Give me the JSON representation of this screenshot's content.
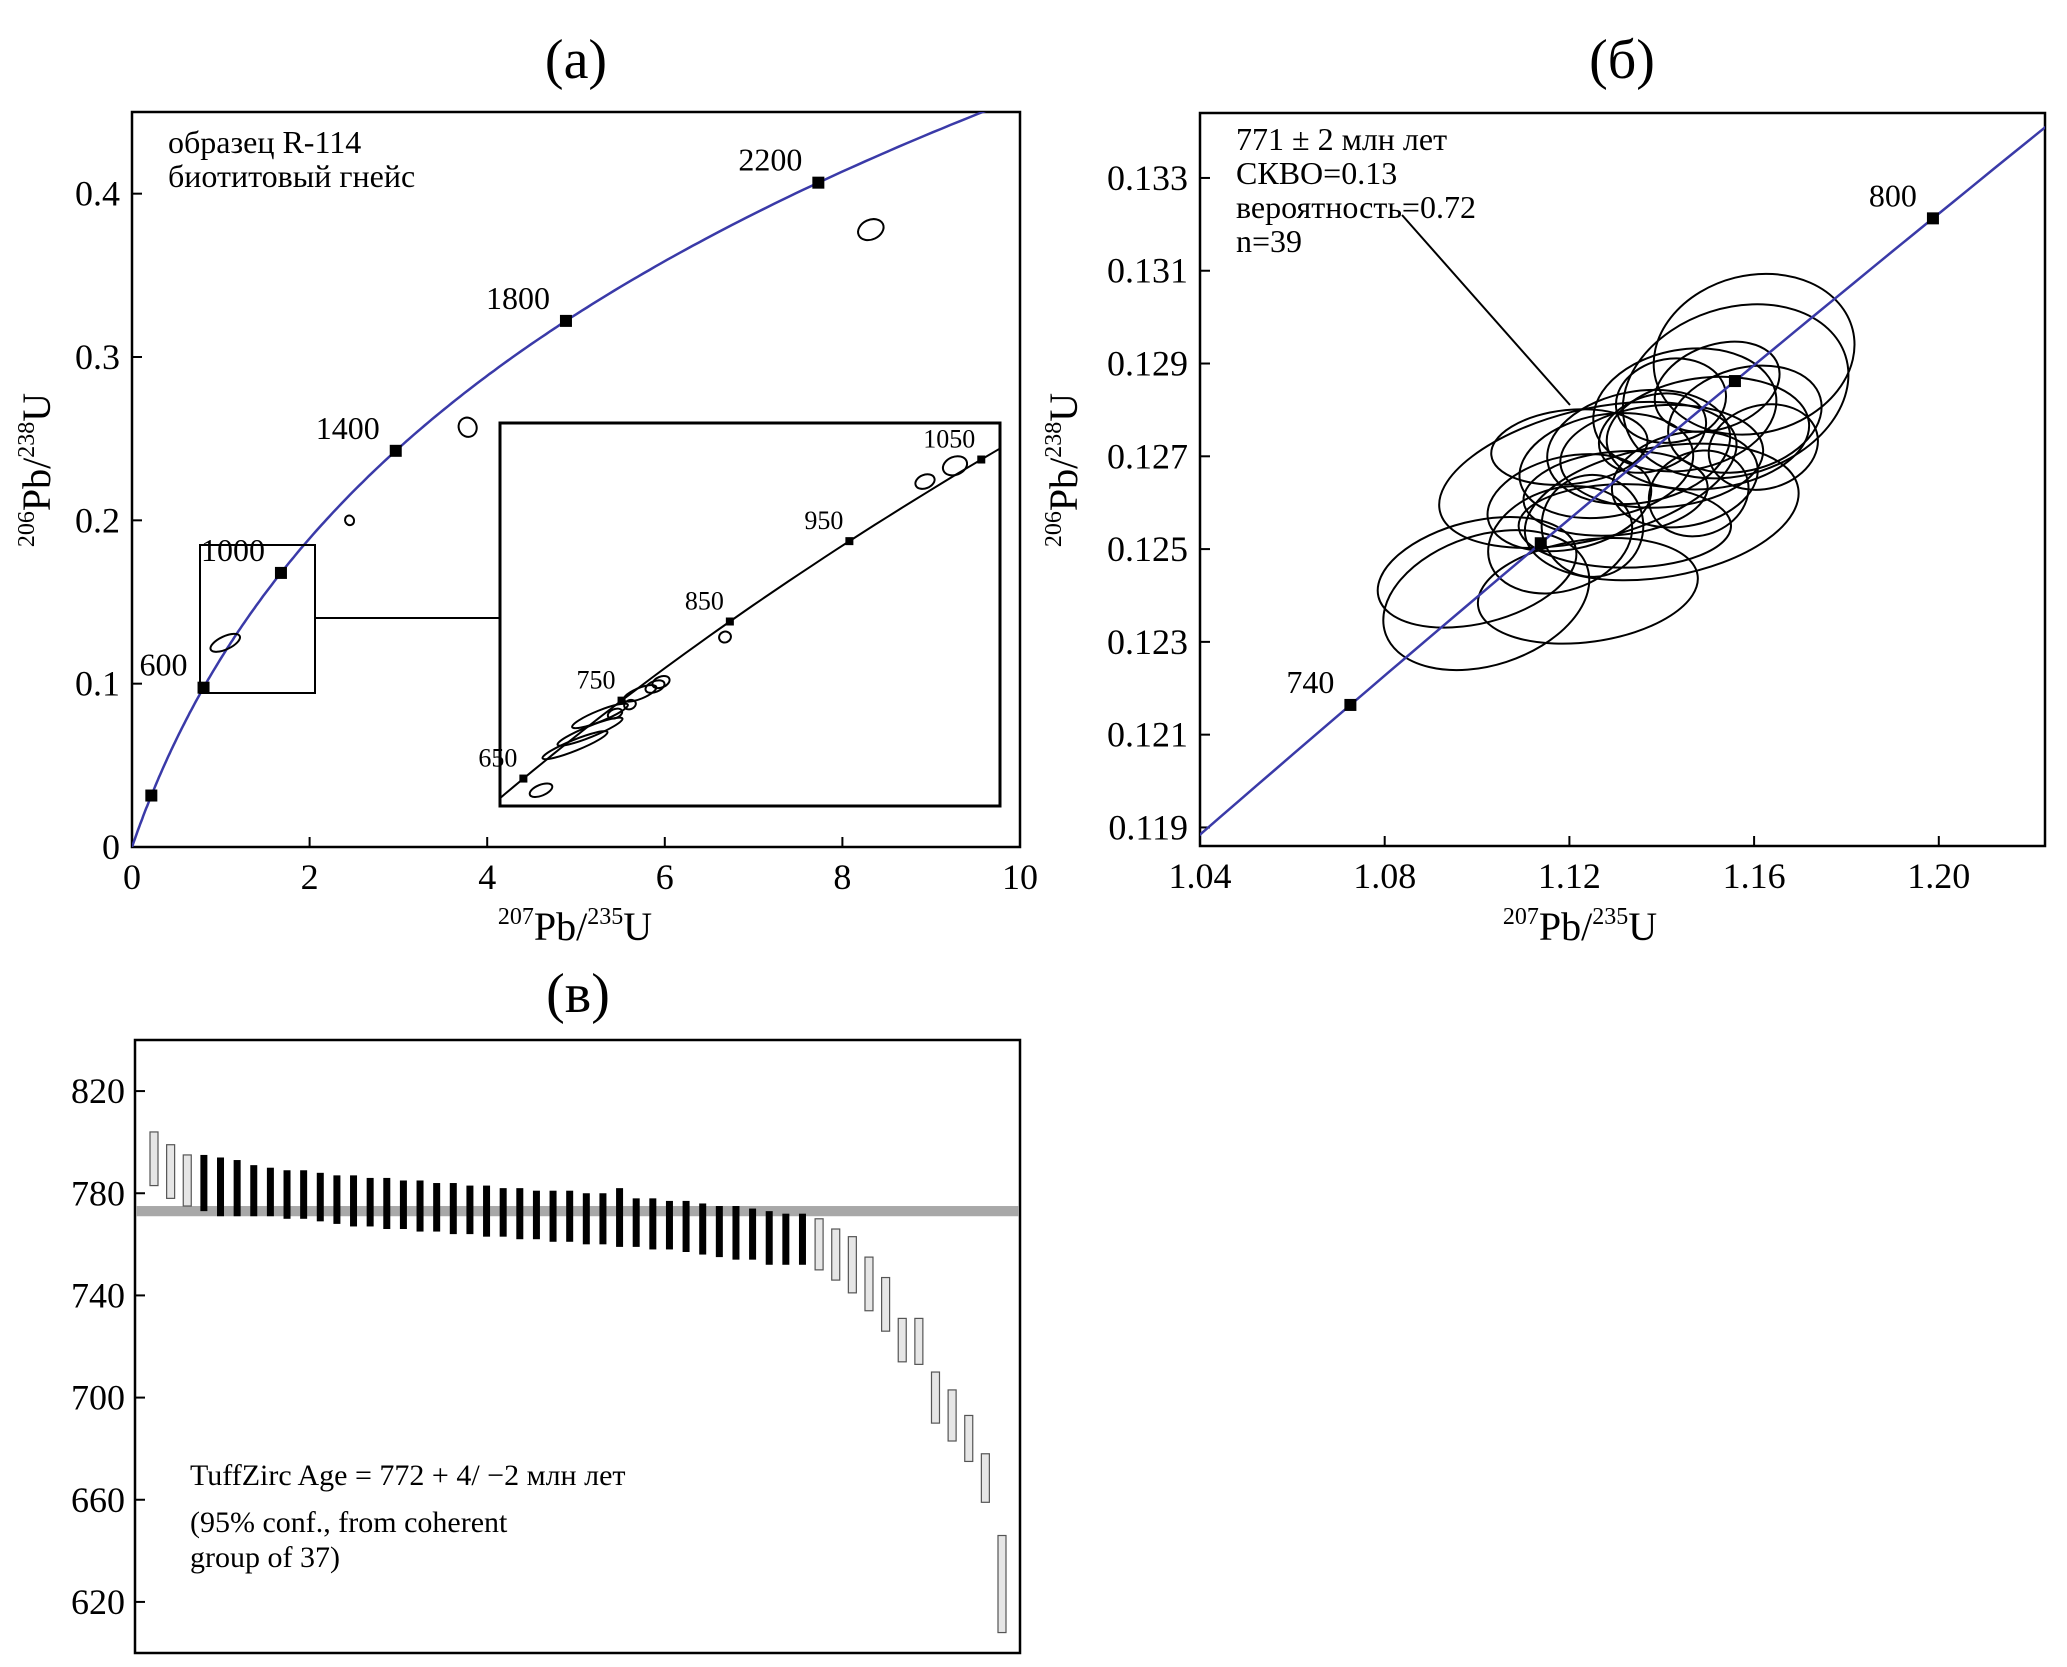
{
  "colors": {
    "concordia": "#3a3aa8",
    "axis": "#000000",
    "bar_black": "#000000",
    "bar_light": "#e6e6e6",
    "mean_band": "#a8a8a8"
  },
  "panel_labels": {
    "a": "(а)",
    "b": "(б)",
    "c": "(в)"
  },
  "chart_data": [
    {
      "id": "a",
      "type": "scatter",
      "title": "(а)",
      "annotation": [
        "образец R-114",
        "биотитовый гнейс"
      ],
      "xlabel": {
        "sup1": "207",
        "t1": "Pb/",
        "sup2": "235",
        "t2": "U"
      },
      "ylabel": {
        "sup1": "206",
        "t1": "Pb/",
        "sup2": "238",
        "t2": "U"
      },
      "xlim": [
        0,
        10
      ],
      "ylim": [
        0,
        0.45
      ],
      "xticks": [
        0,
        2,
        4,
        6,
        8,
        10
      ],
      "yticks": [
        0,
        0.1,
        0.2,
        0.3,
        0.4
      ],
      "concordia_ages": [
        200,
        600,
        1000,
        1400,
        1800,
        2200
      ],
      "concordia_labels": [
        "600",
        "1000",
        "1400",
        "1800",
        "2200"
      ],
      "ellipses": [
        {
          "x": 8.32,
          "y": 0.378,
          "rx": 0.15,
          "ry": 0.006
        },
        {
          "x": 3.78,
          "y": 0.257,
          "rx": 0.1,
          "ry": 0.006
        },
        {
          "x": 2.45,
          "y": 0.2,
          "rx": 0.05,
          "ry": 0.003
        },
        {
          "x": 1.05,
          "y": 0.125,
          "rx": 0.18,
          "ry": 0.004
        }
      ],
      "inset": {
        "xlim": [
          0.85,
          1.85
        ],
        "ylim": [
          0.1,
          0.185
        ],
        "concordia_labels": [
          "650",
          "750",
          "850",
          "950",
          "1050"
        ],
        "marker_ages": [
          650,
          750,
          850,
          950,
          1050
        ],
        "ellipses": [
          {
            "x": 0.932,
            "y": 0.1035,
            "rx": 0.024,
            "ry": 0.0012
          },
          {
            "x": 1.0,
            "y": 0.1135,
            "rx": 0.07,
            "ry": 0.0012
          },
          {
            "x": 1.03,
            "y": 0.1165,
            "rx": 0.07,
            "ry": 0.0012
          },
          {
            "x": 1.05,
            "y": 0.12,
            "rx": 0.06,
            "ry": 0.0012
          },
          {
            "x": 1.13,
            "y": 0.125,
            "rx": 0.035,
            "ry": 0.0012
          },
          {
            "x": 1.16,
            "y": 0.1265,
            "rx": 0.02,
            "ry": 0.0012
          },
          {
            "x": 1.172,
            "y": 0.1275,
            "rx": 0.018,
            "ry": 0.0012
          },
          {
            "x": 1.08,
            "y": 0.1205,
            "rx": 0.015,
            "ry": 0.001
          },
          {
            "x": 1.11,
            "y": 0.1225,
            "rx": 0.012,
            "ry": 0.001
          },
          {
            "x": 1.3,
            "y": 0.1375,
            "rx": 0.012,
            "ry": 0.0012
          },
          {
            "x": 1.7,
            "y": 0.172,
            "rx": 0.02,
            "ry": 0.0015
          },
          {
            "x": 1.76,
            "y": 0.1755,
            "rx": 0.025,
            "ry": 0.002
          }
        ]
      }
    },
    {
      "id": "b",
      "type": "scatter",
      "title": "(б)",
      "annotation": [
        "771 ± 2 млн лет",
        "СКВО=0.13",
        "вероятность=0.72",
        "n=39"
      ],
      "xlabel": {
        "sup1": "207",
        "t1": "Pb/",
        "sup2": "235",
        "t2": "U"
      },
      "ylabel": {
        "sup1": "206",
        "t1": "Pb/",
        "sup2": "238",
        "t2": "U"
      },
      "xlim": [
        1.04,
        1.223
      ],
      "ylim": [
        0.1186,
        0.1344
      ],
      "xticks": [
        1.04,
        1.08,
        1.12,
        1.16,
        1.2
      ],
      "xtick_labels": [
        "1.04",
        "1.08",
        "1.12",
        "1.16",
        "1.20"
      ],
      "yticks": [
        0.119,
        0.121,
        0.123,
        0.125,
        0.127,
        0.129,
        0.131,
        0.133
      ],
      "ytick_labels": [
        "0.119",
        "0.121",
        "0.123",
        "0.125",
        "0.127",
        "0.129",
        "0.131",
        "0.133"
      ],
      "concordia_ages": [
        740,
        760,
        780,
        800
      ],
      "concordia_labels": [
        "740",
        "800"
      ],
      "ellipses": [
        {
          "x": 1.124,
          "y": 0.1266,
          "rx": 0.033,
          "ry": 0.0014,
          "rot": -14
        },
        {
          "x": 1.102,
          "y": 0.1239,
          "rx": 0.023,
          "ry": 0.0014,
          "rot": -18
        },
        {
          "x": 1.1,
          "y": 0.1245,
          "rx": 0.022,
          "ry": 0.0011,
          "rot": -14
        },
        {
          "x": 1.124,
          "y": 0.1241,
          "rx": 0.024,
          "ry": 0.0011,
          "rot": -8
        },
        {
          "x": 1.14,
          "y": 0.1258,
          "rx": 0.03,
          "ry": 0.0014,
          "rot": -10
        },
        {
          "x": 1.156,
          "y": 0.1284,
          "rx": 0.025,
          "ry": 0.0018,
          "rot": -18
        },
        {
          "x": 1.16,
          "y": 0.1292,
          "rx": 0.022,
          "ry": 0.0017,
          "rot": -14
        },
        {
          "x": 1.145,
          "y": 0.128,
          "rx": 0.02,
          "ry": 0.0013,
          "rot": -10
        },
        {
          "x": 1.15,
          "y": 0.1275,
          "rx": 0.022,
          "ry": 0.0012,
          "rot": -6
        },
        {
          "x": 1.135,
          "y": 0.1272,
          "rx": 0.02,
          "ry": 0.0012,
          "rot": -10
        },
        {
          "x": 1.128,
          "y": 0.1268,
          "rx": 0.019,
          "ry": 0.0011,
          "rot": -10
        },
        {
          "x": 1.14,
          "y": 0.127,
          "rx": 0.022,
          "ry": 0.0011,
          "rot": -4
        },
        {
          "x": 1.12,
          "y": 0.126,
          "rx": 0.018,
          "ry": 0.001,
          "rot": -12
        },
        {
          "x": 1.118,
          "y": 0.1252,
          "rx": 0.016,
          "ry": 0.0011,
          "rot": -18
        },
        {
          "x": 1.13,
          "y": 0.1262,
          "rx": 0.02,
          "ry": 0.0009,
          "rot": -5
        },
        {
          "x": 1.145,
          "y": 0.1265,
          "rx": 0.016,
          "ry": 0.001,
          "rot": -12
        },
        {
          "x": 1.152,
          "y": 0.1285,
          "rx": 0.014,
          "ry": 0.0009,
          "rot": -20
        },
        {
          "x": 1.158,
          "y": 0.1278,
          "rx": 0.017,
          "ry": 0.0011,
          "rot": -16
        },
        {
          "x": 1.132,
          "y": 0.1255,
          "rx": 0.023,
          "ry": 0.0009,
          "rot": 0
        },
        {
          "x": 1.138,
          "y": 0.1275,
          "rx": 0.012,
          "ry": 0.0008,
          "rot": -20
        },
        {
          "x": 1.142,
          "y": 0.1282,
          "rx": 0.012,
          "ry": 0.0009,
          "rot": -10
        },
        {
          "x": 1.12,
          "y": 0.1272,
          "rx": 0.017,
          "ry": 0.0008,
          "rot": -6
        },
        {
          "x": 1.125,
          "y": 0.1255,
          "rx": 0.011,
          "ry": 0.0011,
          "rot": -25
        },
        {
          "x": 1.148,
          "y": 0.1262,
          "rx": 0.011,
          "ry": 0.0009,
          "rot": -20
        },
        {
          "x": 1.162,
          "y": 0.1272,
          "rx": 0.012,
          "ry": 0.0009,
          "rot": -15
        }
      ]
    },
    {
      "id": "c",
      "type": "bar",
      "title": "(в)",
      "annotation": [
        "TuffZirc Age = 772 + 4/ −2 млн лет",
        "(95% conf., from coherent",
        "group of 37)"
      ],
      "ylim": [
        600,
        840
      ],
      "yticks": [
        620,
        660,
        700,
        740,
        780,
        820
      ],
      "mean_band": [
        771,
        775
      ],
      "bars": [
        {
          "lo": 783,
          "hi": 804,
          "coherent": false
        },
        {
          "lo": 778,
          "hi": 799,
          "coherent": false
        },
        {
          "lo": 775,
          "hi": 795,
          "coherent": false
        },
        {
          "lo": 773,
          "hi": 795,
          "coherent": true
        },
        {
          "lo": 771,
          "hi": 794,
          "coherent": true
        },
        {
          "lo": 771,
          "hi": 793,
          "coherent": true
        },
        {
          "lo": 771,
          "hi": 791,
          "coherent": true
        },
        {
          "lo": 771,
          "hi": 790,
          "coherent": true
        },
        {
          "lo": 770,
          "hi": 789,
          "coherent": true
        },
        {
          "lo": 770,
          "hi": 789,
          "coherent": true
        },
        {
          "lo": 769,
          "hi": 788,
          "coherent": true
        },
        {
          "lo": 768,
          "hi": 787,
          "coherent": true
        },
        {
          "lo": 767,
          "hi": 787,
          "coherent": true
        },
        {
          "lo": 767,
          "hi": 786,
          "coherent": true
        },
        {
          "lo": 766,
          "hi": 786,
          "coherent": true
        },
        {
          "lo": 766,
          "hi": 785,
          "coherent": true
        },
        {
          "lo": 765,
          "hi": 785,
          "coherent": true
        },
        {
          "lo": 765,
          "hi": 784,
          "coherent": true
        },
        {
          "lo": 764,
          "hi": 784,
          "coherent": true
        },
        {
          "lo": 764,
          "hi": 783,
          "coherent": true
        },
        {
          "lo": 763,
          "hi": 783,
          "coherent": true
        },
        {
          "lo": 763,
          "hi": 782,
          "coherent": true
        },
        {
          "lo": 762,
          "hi": 782,
          "coherent": true
        },
        {
          "lo": 762,
          "hi": 781,
          "coherent": true
        },
        {
          "lo": 761,
          "hi": 781,
          "coherent": true
        },
        {
          "lo": 761,
          "hi": 781,
          "coherent": true
        },
        {
          "lo": 760,
          "hi": 780,
          "coherent": true
        },
        {
          "lo": 760,
          "hi": 780,
          "coherent": true
        },
        {
          "lo": 759,
          "hi": 782,
          "coherent": true
        },
        {
          "lo": 759,
          "hi": 778,
          "coherent": true
        },
        {
          "lo": 758,
          "hi": 778,
          "coherent": true
        },
        {
          "lo": 758,
          "hi": 777,
          "coherent": true
        },
        {
          "lo": 757,
          "hi": 777,
          "coherent": true
        },
        {
          "lo": 756,
          "hi": 776,
          "coherent": true
        },
        {
          "lo": 755,
          "hi": 775,
          "coherent": true
        },
        {
          "lo": 754,
          "hi": 775,
          "coherent": true
        },
        {
          "lo": 754,
          "hi": 774,
          "coherent": true
        },
        {
          "lo": 752,
          "hi": 773,
          "coherent": true
        },
        {
          "lo": 752,
          "hi": 772,
          "coherent": true
        },
        {
          "lo": 752,
          "hi": 772,
          "coherent": true
        },
        {
          "lo": 750,
          "hi": 770,
          "coherent": false
        },
        {
          "lo": 746,
          "hi": 766,
          "coherent": false
        },
        {
          "lo": 741,
          "hi": 763,
          "coherent": false
        },
        {
          "lo": 734,
          "hi": 755,
          "coherent": false
        },
        {
          "lo": 726,
          "hi": 747,
          "coherent": false
        },
        {
          "lo": 714,
          "hi": 731,
          "coherent": false
        },
        {
          "lo": 713,
          "hi": 731,
          "coherent": false
        },
        {
          "lo": 690,
          "hi": 710,
          "coherent": false
        },
        {
          "lo": 683,
          "hi": 703,
          "coherent": false
        },
        {
          "lo": 675,
          "hi": 693,
          "coherent": false
        },
        {
          "lo": 659,
          "hi": 678,
          "coherent": false
        },
        {
          "lo": 608,
          "hi": 646,
          "coherent": false
        }
      ]
    }
  ]
}
